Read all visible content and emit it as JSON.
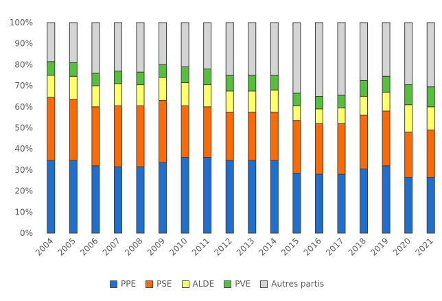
{
  "chart_data": {
    "type": "bar",
    "stacked": true,
    "categories": [
      "2004",
      "2005",
      "2006",
      "2007",
      "2008",
      "2009",
      "2010",
      "2011",
      "2012",
      "2013",
      "2014",
      "2015",
      "2016",
      "2017",
      "2018",
      "2019",
      "2020",
      "2021"
    ],
    "ylim": [
      0,
      100
    ],
    "yticks": [
      "0%",
      "10%",
      "20%",
      "30%",
      "40%",
      "50%",
      "60%",
      "70%",
      "80%",
      "90%",
      "100%"
    ],
    "grid": false,
    "legend_position": "bottom",
    "series": [
      {
        "name": "PPE",
        "color": "#1f6fd1",
        "values": [
          34.5,
          34.5,
          32,
          31.5,
          31.5,
          33.5,
          36,
          36,
          34.5,
          34.5,
          34.5,
          28.5,
          28,
          28,
          30.5,
          32,
          26.5,
          26.5
        ]
      },
      {
        "name": "PSE",
        "color": "#ff6a00",
        "values": [
          30,
          29,
          28,
          29,
          29,
          29.5,
          24.5,
          24,
          23,
          23,
          23,
          25,
          24,
          24,
          25.5,
          26,
          21.5,
          22.5
        ]
      },
      {
        "name": "ALDE",
        "color": "#ffff66",
        "values": [
          10.5,
          11,
          10,
          10.5,
          10,
          11,
          11,
          10.5,
          10,
          10,
          10.5,
          7,
          7,
          7.5,
          9,
          9,
          13,
          11
        ]
      },
      {
        "name": "PVE",
        "color": "#55c03a",
        "values": [
          6.5,
          6.5,
          6,
          6,
          6,
          6,
          7.5,
          7.5,
          7.5,
          7.5,
          7,
          6,
          6,
          6,
          7.5,
          7.5,
          9.5,
          9.5
        ]
      },
      {
        "name": "Autres partis",
        "color": "#d4d4d4",
        "values": [
          18.5,
          19,
          24,
          23,
          23.5,
          20,
          21,
          22,
          25,
          25,
          25,
          33.5,
          35,
          34.5,
          27.5,
          25.5,
          29.5,
          30.5
        ]
      }
    ]
  }
}
